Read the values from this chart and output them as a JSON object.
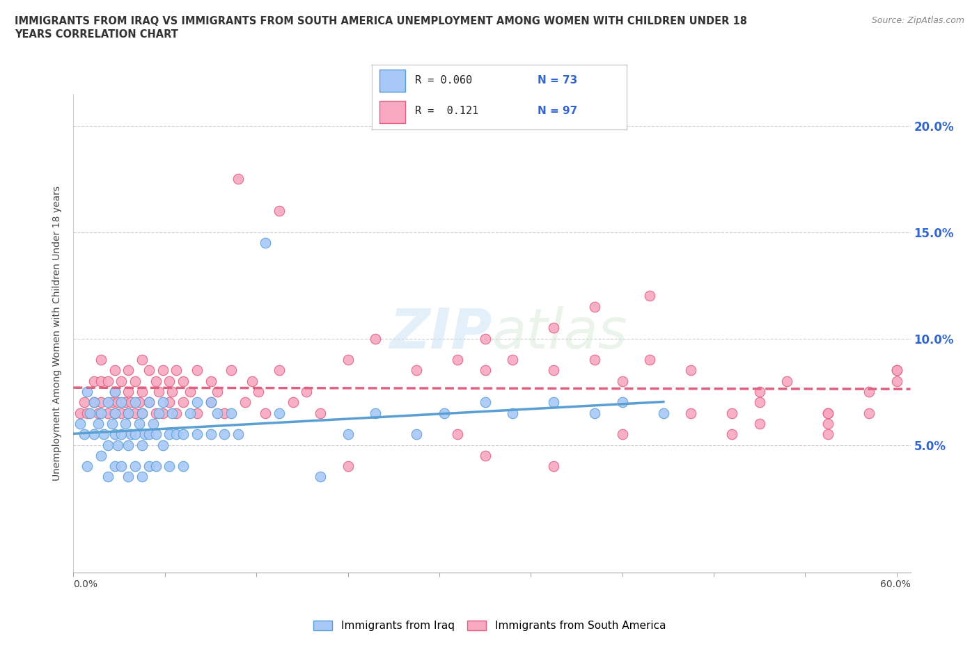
{
  "title_line1": "IMMIGRANTS FROM IRAQ VS IMMIGRANTS FROM SOUTH AMERICA UNEMPLOYMENT AMONG WOMEN WITH CHILDREN UNDER 18",
  "title_line2": "YEARS CORRELATION CHART",
  "source": "Source: ZipAtlas.com",
  "ylabel": "Unemployment Among Women with Children Under 18 years",
  "yticks": [
    0.0,
    0.05,
    0.1,
    0.15,
    0.2
  ],
  "ytick_labels": [
    "",
    "5.0%",
    "10.0%",
    "15.0%",
    "20.0%"
  ],
  "xlim": [
    0.0,
    0.61
  ],
  "ylim": [
    -0.01,
    0.215
  ],
  "watermark": "ZIPatlas",
  "color_iraq": "#a8c8f8",
  "color_iraq_edge": "#5a9fd4",
  "color_sa": "#f8a8c0",
  "color_sa_edge": "#e06080",
  "color_iraq_line": "#5a9fd4",
  "color_sa_line": "#e06080",
  "iraq_x": [
    0.005,
    0.008,
    0.01,
    0.01,
    0.012,
    0.015,
    0.015,
    0.018,
    0.02,
    0.02,
    0.022,
    0.025,
    0.025,
    0.025,
    0.028,
    0.03,
    0.03,
    0.03,
    0.03,
    0.032,
    0.035,
    0.035,
    0.035,
    0.038,
    0.04,
    0.04,
    0.04,
    0.042,
    0.045,
    0.045,
    0.045,
    0.048,
    0.05,
    0.05,
    0.05,
    0.052,
    0.055,
    0.055,
    0.055,
    0.058,
    0.06,
    0.06,
    0.062,
    0.065,
    0.065,
    0.07,
    0.07,
    0.072,
    0.075,
    0.08,
    0.08,
    0.085,
    0.09,
    0.09,
    0.1,
    0.1,
    0.105,
    0.11,
    0.115,
    0.12,
    0.14,
    0.15,
    0.18,
    0.2,
    0.22,
    0.25,
    0.27,
    0.3,
    0.32,
    0.35,
    0.38,
    0.4,
    0.43
  ],
  "iraq_y": [
    0.06,
    0.055,
    0.04,
    0.075,
    0.065,
    0.055,
    0.07,
    0.06,
    0.045,
    0.065,
    0.055,
    0.035,
    0.05,
    0.07,
    0.06,
    0.04,
    0.055,
    0.065,
    0.075,
    0.05,
    0.04,
    0.055,
    0.07,
    0.06,
    0.035,
    0.05,
    0.065,
    0.055,
    0.04,
    0.055,
    0.07,
    0.06,
    0.035,
    0.05,
    0.065,
    0.055,
    0.04,
    0.055,
    0.07,
    0.06,
    0.04,
    0.055,
    0.065,
    0.05,
    0.07,
    0.04,
    0.055,
    0.065,
    0.055,
    0.04,
    0.055,
    0.065,
    0.055,
    0.07,
    0.055,
    0.07,
    0.065,
    0.055,
    0.065,
    0.055,
    0.145,
    0.065,
    0.035,
    0.055,
    0.065,
    0.055,
    0.065,
    0.07,
    0.065,
    0.07,
    0.065,
    0.07,
    0.065
  ],
  "sa_x": [
    0.005,
    0.008,
    0.01,
    0.015,
    0.015,
    0.018,
    0.02,
    0.02,
    0.02,
    0.025,
    0.025,
    0.028,
    0.03,
    0.03,
    0.03,
    0.032,
    0.035,
    0.035,
    0.038,
    0.04,
    0.04,
    0.04,
    0.042,
    0.045,
    0.045,
    0.048,
    0.05,
    0.05,
    0.05,
    0.055,
    0.055,
    0.06,
    0.06,
    0.062,
    0.065,
    0.065,
    0.07,
    0.07,
    0.072,
    0.075,
    0.075,
    0.08,
    0.08,
    0.085,
    0.09,
    0.09,
    0.1,
    0.1,
    0.105,
    0.11,
    0.115,
    0.12,
    0.125,
    0.13,
    0.135,
    0.14,
    0.15,
    0.15,
    0.16,
    0.17,
    0.18,
    0.2,
    0.22,
    0.25,
    0.28,
    0.3,
    0.32,
    0.35,
    0.38,
    0.4,
    0.42,
    0.45,
    0.48,
    0.5,
    0.52,
    0.55,
    0.55,
    0.58,
    0.6,
    0.3,
    0.35,
    0.2,
    0.55,
    0.45,
    0.5,
    0.35,
    0.4,
    0.5,
    0.55,
    0.28,
    0.3,
    0.38,
    0.42,
    0.48,
    0.58,
    0.6,
    0.6
  ],
  "sa_y": [
    0.065,
    0.07,
    0.065,
    0.07,
    0.08,
    0.065,
    0.07,
    0.08,
    0.09,
    0.065,
    0.08,
    0.07,
    0.065,
    0.075,
    0.085,
    0.07,
    0.065,
    0.08,
    0.07,
    0.065,
    0.075,
    0.085,
    0.07,
    0.065,
    0.08,
    0.07,
    0.065,
    0.075,
    0.09,
    0.07,
    0.085,
    0.065,
    0.08,
    0.075,
    0.065,
    0.085,
    0.07,
    0.08,
    0.075,
    0.065,
    0.085,
    0.07,
    0.08,
    0.075,
    0.065,
    0.085,
    0.07,
    0.08,
    0.075,
    0.065,
    0.085,
    0.175,
    0.07,
    0.08,
    0.075,
    0.065,
    0.085,
    0.16,
    0.07,
    0.075,
    0.065,
    0.09,
    0.1,
    0.085,
    0.09,
    0.085,
    0.09,
    0.085,
    0.09,
    0.08,
    0.09,
    0.085,
    0.065,
    0.075,
    0.08,
    0.065,
    0.06,
    0.075,
    0.085,
    0.1,
    0.105,
    0.04,
    0.055,
    0.065,
    0.07,
    0.04,
    0.055,
    0.06,
    0.065,
    0.055,
    0.045,
    0.115,
    0.12,
    0.055,
    0.065,
    0.085,
    0.08
  ]
}
